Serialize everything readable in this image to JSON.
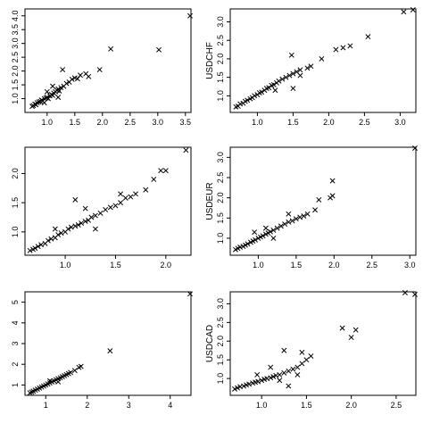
{
  "chart_data": [
    {
      "type": "scatter",
      "xlabel": "",
      "ylabel": "",
      "xlim": [
        0.6,
        3.6
      ],
      "ylim": [
        0.5,
        4.25
      ],
      "xticks": [
        "1.0",
        "1.5",
        "2.0",
        "2.5",
        "3.0",
        "3.5"
      ],
      "yticks": [
        "1.0",
        "1.5",
        "2.0",
        "2.5",
        "3.0",
        "3.5",
        "4.0"
      ],
      "xtick_vals": [
        1.0,
        1.5,
        2.0,
        2.5,
        3.0,
        3.5
      ],
      "ytick_vals": [
        1.0,
        1.5,
        2.0,
        2.5,
        3.0,
        3.5,
        4.0
      ],
      "grid": false,
      "marker": "x",
      "points": [
        [
          0.73,
          0.72
        ],
        [
          0.75,
          0.75
        ],
        [
          0.78,
          0.8
        ],
        [
          0.8,
          0.78
        ],
        [
          0.82,
          0.85
        ],
        [
          0.85,
          0.88
        ],
        [
          0.88,
          0.9
        ],
        [
          0.9,
          0.95
        ],
        [
          0.92,
          0.92
        ],
        [
          0.95,
          1.0
        ],
        [
          0.98,
          1.02
        ],
        [
          1.0,
          1.05
        ],
        [
          1.02,
          1.0
        ],
        [
          1.05,
          1.1
        ],
        [
          1.08,
          1.15
        ],
        [
          1.1,
          1.12
        ],
        [
          1.12,
          1.2
        ],
        [
          1.15,
          1.25
        ],
        [
          1.18,
          1.3
        ],
        [
          1.2,
          1.35
        ],
        [
          1.22,
          1.28
        ],
        [
          1.25,
          1.4
        ],
        [
          1.3,
          1.45
        ],
        [
          1.35,
          1.55
        ],
        [
          1.4,
          1.6
        ],
        [
          1.45,
          1.7
        ],
        [
          1.5,
          1.75
        ],
        [
          1.55,
          1.72
        ],
        [
          1.6,
          1.85
        ],
        [
          1.7,
          1.9
        ],
        [
          1.75,
          1.8
        ],
        [
          1.95,
          2.05
        ],
        [
          1.28,
          2.05
        ],
        [
          2.15,
          2.8
        ],
        [
          3.02,
          2.77
        ],
        [
          3.6,
          4.0
        ],
        [
          1.0,
          1.25
        ],
        [
          1.1,
          1.45
        ],
        [
          0.95,
          0.85
        ],
        [
          1.2,
          1.05
        ]
      ]
    },
    {
      "type": "scatter",
      "xlabel": "",
      "ylabel": "USDCHF",
      "xlim": [
        0.62,
        3.22
      ],
      "ylim": [
        0.55,
        3.35
      ],
      "xticks": [
        "1.0",
        "1.5",
        "2.0",
        "2.5",
        "3.0"
      ],
      "yticks": [
        "1.0",
        "1.5",
        "2.0",
        "2.5",
        "3.0"
      ],
      "xtick_vals": [
        1.0,
        1.5,
        2.0,
        2.5,
        3.0
      ],
      "ytick_vals": [
        1.0,
        1.5,
        2.0,
        2.5,
        3.0
      ],
      "grid": false,
      "marker": "x",
      "points": [
        [
          0.7,
          0.7
        ],
        [
          0.73,
          0.72
        ],
        [
          0.76,
          0.78
        ],
        [
          0.8,
          0.8
        ],
        [
          0.83,
          0.85
        ],
        [
          0.86,
          0.88
        ],
        [
          0.9,
          0.92
        ],
        [
          0.93,
          0.95
        ],
        [
          0.96,
          1.0
        ],
        [
          1.0,
          1.03
        ],
        [
          1.03,
          1.08
        ],
        [
          1.06,
          1.1
        ],
        [
          1.1,
          1.15
        ],
        [
          1.13,
          1.2
        ],
        [
          1.16,
          1.22
        ],
        [
          1.2,
          1.28
        ],
        [
          1.23,
          1.3
        ],
        [
          1.27,
          1.35
        ],
        [
          1.3,
          1.4
        ],
        [
          1.35,
          1.45
        ],
        [
          1.4,
          1.5
        ],
        [
          1.45,
          1.55
        ],
        [
          1.5,
          1.6
        ],
        [
          1.55,
          1.65
        ],
        [
          1.6,
          1.7
        ],
        [
          1.7,
          1.75
        ],
        [
          1.75,
          1.8
        ],
        [
          1.48,
          2.1
        ],
        [
          1.9,
          2.0
        ],
        [
          2.1,
          2.25
        ],
        [
          2.2,
          2.3
        ],
        [
          2.3,
          2.35
        ],
        [
          2.55,
          2.6
        ],
        [
          3.05,
          3.27
        ],
        [
          3.18,
          3.35
        ],
        [
          1.5,
          1.2
        ],
        [
          1.25,
          1.15
        ],
        [
          1.6,
          1.55
        ]
      ]
    },
    {
      "type": "scatter",
      "xlabel": "",
      "ylabel": "",
      "xlim": [
        0.6,
        2.25
      ],
      "ylim": [
        0.6,
        2.45
      ],
      "xticks": [
        "1.0",
        "1.5",
        "2.0"
      ],
      "yticks": [
        "1.0",
        "1.5",
        "2.0"
      ],
      "xtick_vals": [
        1.0,
        1.5,
        2.0
      ],
      "ytick_vals": [
        1.0,
        1.5,
        2.0
      ],
      "grid": false,
      "marker": "x",
      "points": [
        [
          0.65,
          0.68
        ],
        [
          0.68,
          0.7
        ],
        [
          0.7,
          0.72
        ],
        [
          0.73,
          0.75
        ],
        [
          0.76,
          0.78
        ],
        [
          0.8,
          0.8
        ],
        [
          0.83,
          0.85
        ],
        [
          0.86,
          0.88
        ],
        [
          0.9,
          0.9
        ],
        [
          0.93,
          0.95
        ],
        [
          0.96,
          0.98
        ],
        [
          1.0,
          1.0
        ],
        [
          1.03,
          1.05
        ],
        [
          1.06,
          1.08
        ],
        [
          1.1,
          1.1
        ],
        [
          1.13,
          1.12
        ],
        [
          1.16,
          1.15
        ],
        [
          1.2,
          1.18
        ],
        [
          1.23,
          1.2
        ],
        [
          1.26,
          1.25
        ],
        [
          1.3,
          1.28
        ],
        [
          1.35,
          1.32
        ],
        [
          1.4,
          1.38
        ],
        [
          1.45,
          1.42
        ],
        [
          1.5,
          1.45
        ],
        [
          1.55,
          1.5
        ],
        [
          1.6,
          1.58
        ],
        [
          1.65,
          1.6
        ],
        [
          1.7,
          1.65
        ],
        [
          1.8,
          1.72
        ],
        [
          1.88,
          1.9
        ],
        [
          1.95,
          2.05
        ],
        [
          2.0,
          2.05
        ],
        [
          2.2,
          2.4
        ],
        [
          1.1,
          1.55
        ],
        [
          1.3,
          1.05
        ],
        [
          0.9,
          1.05
        ],
        [
          1.2,
          1.4
        ],
        [
          1.55,
          1.65
        ]
      ]
    },
    {
      "type": "scatter",
      "xlabel": "",
      "ylabel": "USDEUR",
      "xlim": [
        0.63,
        3.08
      ],
      "ylim": [
        0.58,
        3.25
      ],
      "xticks": [
        "1.0",
        "1.5",
        "2.0",
        "2.5",
        "3.0"
      ],
      "yticks": [
        "1.0",
        "1.5",
        "2.0",
        "2.5",
        "3.0"
      ],
      "xtick_vals": [
        1.0,
        1.5,
        2.0,
        2.5,
        3.0
      ],
      "ytick_vals": [
        1.0,
        1.5,
        2.0,
        2.5,
        3.0
      ],
      "grid": false,
      "marker": "x",
      "points": [
        [
          0.7,
          0.72
        ],
        [
          0.73,
          0.75
        ],
        [
          0.76,
          0.78
        ],
        [
          0.8,
          0.8
        ],
        [
          0.83,
          0.83
        ],
        [
          0.86,
          0.86
        ],
        [
          0.9,
          0.9
        ],
        [
          0.93,
          0.93
        ],
        [
          0.96,
          0.96
        ],
        [
          1.0,
          1.0
        ],
        [
          1.03,
          1.03
        ],
        [
          1.06,
          1.06
        ],
        [
          1.1,
          1.1
        ],
        [
          1.13,
          1.13
        ],
        [
          1.16,
          1.16
        ],
        [
          1.2,
          1.2
        ],
        [
          1.25,
          1.25
        ],
        [
          1.3,
          1.3
        ],
        [
          1.35,
          1.35
        ],
        [
          1.4,
          1.4
        ],
        [
          1.45,
          1.43
        ],
        [
          1.5,
          1.48
        ],
        [
          1.55,
          1.52
        ],
        [
          1.6,
          1.55
        ],
        [
          1.65,
          1.6
        ],
        [
          1.75,
          1.7
        ],
        [
          1.8,
          1.95
        ],
        [
          1.95,
          2.0
        ],
        [
          1.98,
          2.05
        ],
        [
          1.98,
          2.42
        ],
        [
          3.08,
          3.25
        ],
        [
          1.2,
          1.0
        ],
        [
          1.1,
          1.25
        ],
        [
          1.4,
          1.6
        ],
        [
          0.95,
          1.15
        ]
      ]
    },
    {
      "type": "scatter",
      "xlabel": "",
      "ylabel": "",
      "xlim": [
        0.5,
        4.5
      ],
      "ylim": [
        0.5,
        5.5
      ],
      "xticks": [
        "1",
        "2",
        "3",
        "4"
      ],
      "yticks": [
        "1",
        "2",
        "3",
        "4",
        "5"
      ],
      "xtick_vals": [
        1,
        2,
        3,
        4
      ],
      "ytick_vals": [
        1,
        2,
        3,
        4,
        5
      ],
      "grid": false,
      "marker": "x",
      "points": [
        [
          0.62,
          0.62
        ],
        [
          0.66,
          0.66
        ],
        [
          0.7,
          0.7
        ],
        [
          0.75,
          0.75
        ],
        [
          0.8,
          0.8
        ],
        [
          0.85,
          0.85
        ],
        [
          0.9,
          0.9
        ],
        [
          0.95,
          0.95
        ],
        [
          1.0,
          1.0
        ],
        [
          1.05,
          1.05
        ],
        [
          1.1,
          1.1
        ],
        [
          1.15,
          1.15
        ],
        [
          1.2,
          1.2
        ],
        [
          1.25,
          1.25
        ],
        [
          1.3,
          1.3
        ],
        [
          1.35,
          1.35
        ],
        [
          1.4,
          1.4
        ],
        [
          1.45,
          1.45
        ],
        [
          1.5,
          1.5
        ],
        [
          1.55,
          1.55
        ],
        [
          1.6,
          1.6
        ],
        [
          1.7,
          1.7
        ],
        [
          1.8,
          1.85
        ],
        [
          1.85,
          1.9
        ],
        [
          2.55,
          2.65
        ],
        [
          4.5,
          5.4
        ],
        [
          1.1,
          1.2
        ],
        [
          1.3,
          1.15
        ]
      ]
    },
    {
      "type": "scatter",
      "xlabel": "",
      "ylabel": "USDCAD",
      "xlim": [
        0.65,
        2.72
      ],
      "ylim": [
        0.55,
        3.32
      ],
      "xticks": [
        "1.0",
        "1.5",
        "2.0",
        "2.5"
      ],
      "yticks": [
        "1.0",
        "1.5",
        "2.0",
        "2.5",
        "3.0"
      ],
      "xtick_vals": [
        1.0,
        1.5,
        2.0,
        2.5
      ],
      "ytick_vals": [
        1.0,
        1.5,
        2.0,
        2.5,
        3.0
      ],
      "grid": false,
      "marker": "x",
      "points": [
        [
          0.7,
          0.72
        ],
        [
          0.73,
          0.75
        ],
        [
          0.76,
          0.78
        ],
        [
          0.8,
          0.8
        ],
        [
          0.83,
          0.83
        ],
        [
          0.86,
          0.85
        ],
        [
          0.9,
          0.88
        ],
        [
          0.93,
          0.9
        ],
        [
          0.96,
          0.92
        ],
        [
          1.0,
          0.95
        ],
        [
          1.03,
          0.98
        ],
        [
          1.06,
          1.0
        ],
        [
          1.1,
          1.02
        ],
        [
          1.13,
          1.05
        ],
        [
          1.16,
          1.08
        ],
        [
          1.2,
          1.1
        ],
        [
          1.25,
          1.15
        ],
        [
          1.3,
          1.2
        ],
        [
          1.35,
          1.25
        ],
        [
          1.4,
          1.3
        ],
        [
          1.45,
          1.4
        ],
        [
          1.5,
          1.5
        ],
        [
          1.55,
          1.6
        ],
        [
          1.25,
          1.75
        ],
        [
          1.45,
          1.7
        ],
        [
          1.3,
          0.8
        ],
        [
          1.9,
          2.35
        ],
        [
          2.0,
          2.1
        ],
        [
          2.05,
          2.3
        ],
        [
          2.6,
          3.3
        ],
        [
          2.72,
          3.25
        ],
        [
          1.1,
          1.3
        ],
        [
          0.95,
          1.1
        ],
        [
          1.2,
          0.95
        ],
        [
          1.4,
          1.1
        ]
      ]
    }
  ]
}
